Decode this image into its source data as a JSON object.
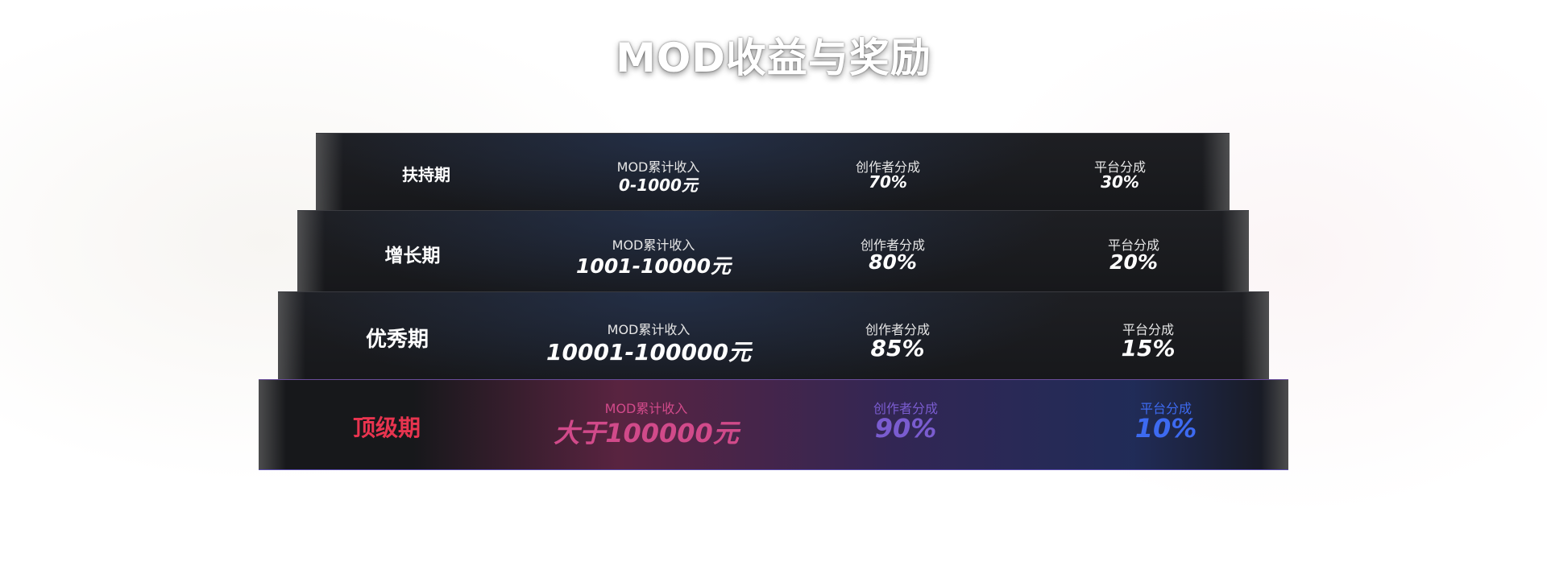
{
  "header": {
    "title": "MOD收益与奖励"
  },
  "tiers": [
    {
      "name": "扶持期",
      "income_label": "MOD累计收入",
      "income": "0-1000元",
      "creator_label": "创作者分成",
      "creator": "70%",
      "platform_label": "平台分成",
      "platform": "30%"
    },
    {
      "name": "增长期",
      "income_label": "MOD累计收入",
      "income": "1001-10000元",
      "creator_label": "创作者分成",
      "creator": "80%",
      "platform_label": "平台分成",
      "platform": "20%"
    },
    {
      "name": "优秀期",
      "income_label": "MOD累计收入",
      "income": "10001-100000元",
      "creator_label": "创作者分成",
      "creator": "85%",
      "platform_label": "平台分成",
      "platform": "15%"
    },
    {
      "name": "顶级期",
      "income_label": "MOD累计收入",
      "income": "大于100000元",
      "creator_label": "创作者分成",
      "creator": "90%",
      "platform_label": "平台分成",
      "platform": "10%"
    }
  ]
}
